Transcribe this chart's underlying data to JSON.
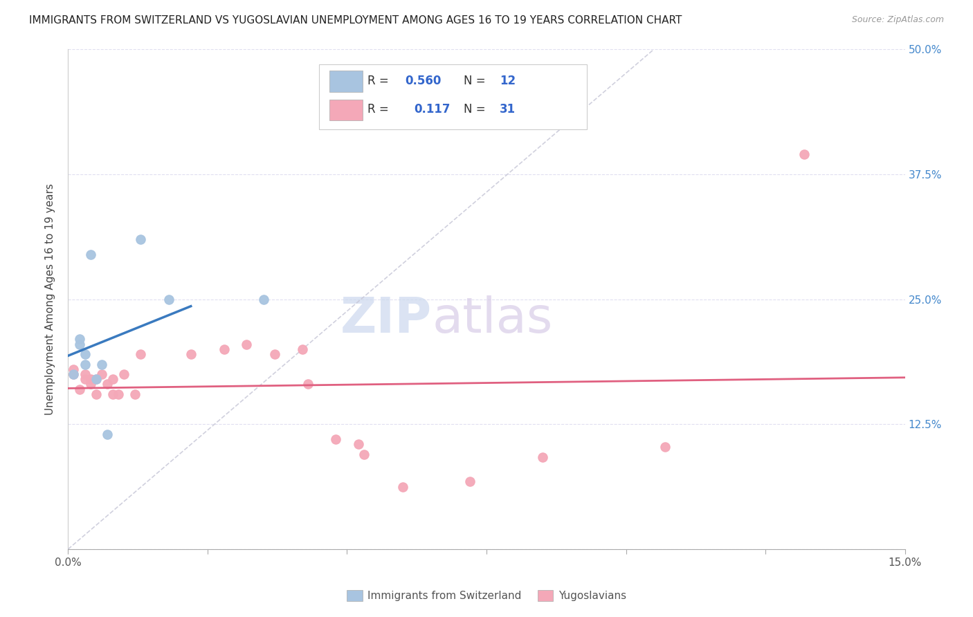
{
  "title": "IMMIGRANTS FROM SWITZERLAND VS YUGOSLAVIAN UNEMPLOYMENT AMONG AGES 16 TO 19 YEARS CORRELATION CHART",
  "source": "Source: ZipAtlas.com",
  "ylabel": "Unemployment Among Ages 16 to 19 years",
  "xlim": [
    0.0,
    0.15
  ],
  "ylim": [
    0.0,
    0.5
  ],
  "xticks": [
    0.0,
    0.025,
    0.05,
    0.075,
    0.1,
    0.125,
    0.15
  ],
  "xticklabels": [
    "0.0%",
    "",
    "",
    "",
    "",
    "",
    "15.0%"
  ],
  "ytick_positions": [
    0.0,
    0.125,
    0.25,
    0.375,
    0.5
  ],
  "ytick_labels": [
    "",
    "12.5%",
    "25.0%",
    "37.5%",
    "50.0%"
  ],
  "swiss_color": "#a8c4e0",
  "yugo_color": "#f4a8b8",
  "swiss_line_color": "#3a7abf",
  "yugo_line_color": "#e06080",
  "diagonal_color": "#c8c8d8",
  "watermark_zip": "ZIP",
  "watermark_atlas": "atlas",
  "swiss_x": [
    0.001,
    0.002,
    0.002,
    0.003,
    0.003,
    0.004,
    0.005,
    0.006,
    0.007,
    0.013,
    0.018,
    0.035
  ],
  "swiss_y": [
    0.175,
    0.21,
    0.205,
    0.185,
    0.195,
    0.295,
    0.17,
    0.185,
    0.115,
    0.31,
    0.25,
    0.25
  ],
  "yugo_x": [
    0.001,
    0.001,
    0.002,
    0.003,
    0.003,
    0.004,
    0.004,
    0.005,
    0.005,
    0.006,
    0.007,
    0.008,
    0.008,
    0.009,
    0.01,
    0.012,
    0.013,
    0.022,
    0.028,
    0.032,
    0.037,
    0.042,
    0.043,
    0.048,
    0.052,
    0.053,
    0.06,
    0.072,
    0.085,
    0.107,
    0.132
  ],
  "yugo_y": [
    0.175,
    0.18,
    0.16,
    0.17,
    0.175,
    0.165,
    0.17,
    0.155,
    0.17,
    0.175,
    0.165,
    0.17,
    0.155,
    0.155,
    0.175,
    0.155,
    0.195,
    0.195,
    0.2,
    0.205,
    0.195,
    0.2,
    0.165,
    0.11,
    0.105,
    0.095,
    0.062,
    0.068,
    0.092,
    0.102,
    0.395
  ],
  "background_color": "#ffffff",
  "grid_color": "#e0dff0",
  "swiss_line_xrange": [
    0.0,
    0.022
  ],
  "yugo_line_xrange": [
    0.0,
    0.15
  ],
  "diagonal_xrange": [
    0.0,
    0.105
  ],
  "diagonal_yrange": [
    0.0,
    0.5
  ]
}
